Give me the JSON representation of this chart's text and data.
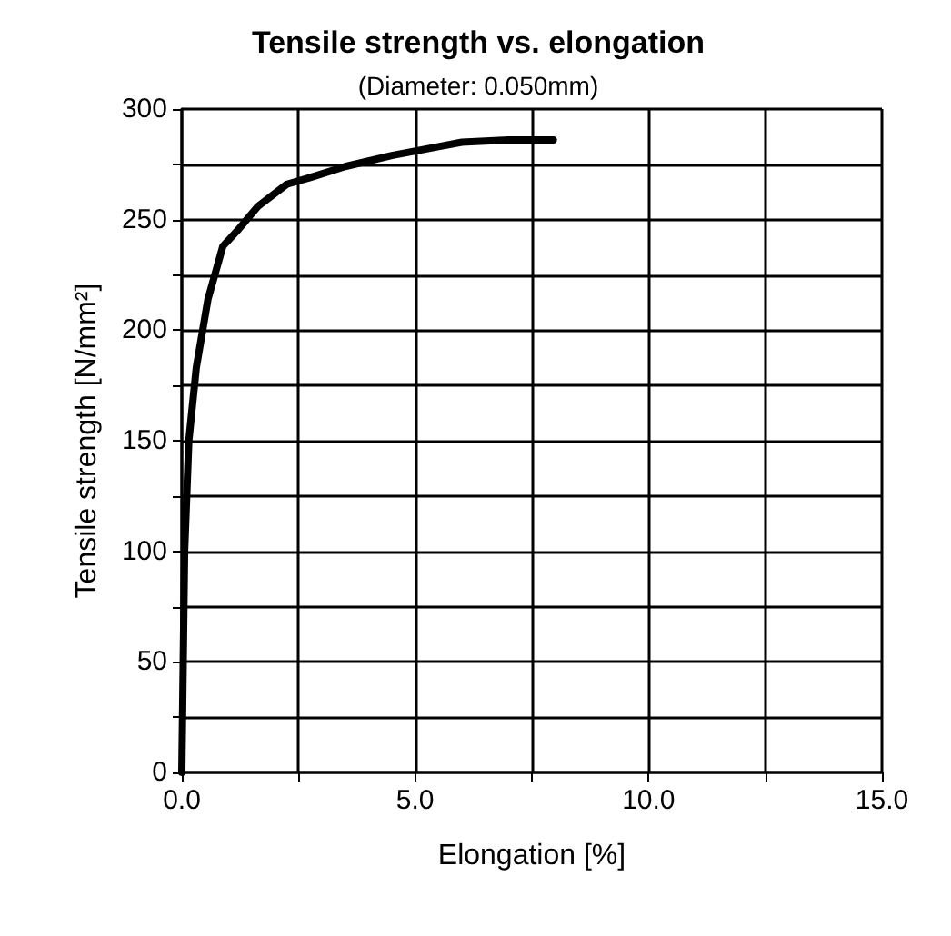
{
  "chart_data": {
    "type": "line",
    "title": "Tensile strength vs. elongation",
    "subtitle": "(Diameter: 0.050mm)",
    "xlabel": "Elongation [%]",
    "ylabel": "Tensile strength [N/mm²]",
    "x": [
      0,
      0.06,
      0.15,
      0.31,
      0.56,
      0.88,
      1.19,
      1.63,
      2.25,
      2.75,
      3.5,
      4.5,
      5.5,
      6.0,
      7.0,
      7.96
    ],
    "series": [
      {
        "color": "#000000",
        "values": [
          0,
          100,
          150,
          183,
          214,
          238,
          245,
          256,
          266,
          269,
          274,
          279,
          283,
          285,
          286,
          286
        ]
      }
    ],
    "xlim": [
      0,
      15
    ],
    "xticks": [
      {
        "value": 0,
        "label": "0.0"
      },
      {
        "value": 2.5,
        "label": null
      },
      {
        "value": 5,
        "label": "5.0"
      },
      {
        "value": 7.5,
        "label": null
      },
      {
        "value": 10,
        "label": "10.0"
      },
      {
        "value": 12.5,
        "label": null
      },
      {
        "value": 15,
        "label": "15.0"
      }
    ],
    "ylim": [
      0,
      300
    ],
    "yticks": [
      0,
      {
        "value": 25,
        "label": null
      },
      50,
      {
        "value": 75,
        "label": null
      },
      100,
      {
        "value": 125,
        "label": null
      },
      150,
      {
        "value": 175,
        "label": null
      },
      200,
      {
        "value": 225,
        "label": null
      },
      250,
      {
        "value": 275,
        "label": null
      },
      300
    ],
    "grid": true,
    "marker": "none",
    "line_style": "solid"
  }
}
